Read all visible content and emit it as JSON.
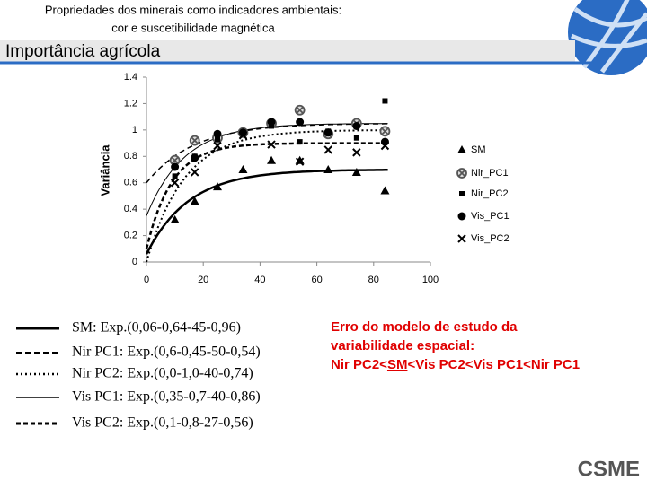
{
  "header": {
    "title_lines": [
      "Propriedades dos minerais como indicadores ambientais:",
      "cor e suscetibilidade magnética"
    ],
    "section": "Importância agrícola"
  },
  "chart_data": {
    "type": "scatter",
    "y_label": "Variância",
    "x": [
      10,
      17,
      25,
      34,
      44,
      54,
      64,
      74,
      84
    ],
    "xlim": [
      0,
      100
    ],
    "xticks": [
      0,
      20,
      40,
      60,
      80,
      100
    ],
    "ylim": [
      0,
      1.4
    ],
    "yticks": [
      0,
      0.2,
      0.4,
      0.6,
      0.8,
      1,
      1.2,
      1.4
    ],
    "series": [
      {
        "name": "SM",
        "color": "#000000",
        "marker": "triangle",
        "values": [
          0.32,
          0.46,
          0.57,
          0.7,
          0.77,
          0.77,
          0.7,
          0.68,
          0.54
        ]
      },
      {
        "name": "Nir_PC1",
        "color": "#555555",
        "marker": "circle-x",
        "values": [
          0.77,
          0.92,
          0.94,
          0.98,
          1.05,
          1.15,
          0.97,
          1.05,
          0.99
        ]
      },
      {
        "name": "Nir_PC2",
        "color": "#000000",
        "marker": "square",
        "values": [
          0.65,
          0.8,
          0.93,
          0.97,
          1.03,
          0.91,
          0.99,
          0.94,
          1.22
        ]
      },
      {
        "name": "Vis_PC1",
        "color": "#000000",
        "marker": "circle",
        "values": [
          0.72,
          0.79,
          0.97,
          0.98,
          1.06,
          1.06,
          0.98,
          1.03,
          0.91
        ]
      },
      {
        "name": "Vis_PC2",
        "color": "#000000",
        "marker": "x",
        "values": [
          0.6,
          0.68,
          0.88,
          0.96,
          0.89,
          0.76,
          0.85,
          0.83,
          0.88
        ]
      }
    ],
    "models": [
      {
        "label": "SM: Exp.(0,06-0,64-45-0,96)",
        "nugget": 0.06,
        "sill": 0.64,
        "range": 45,
        "style": "solid"
      },
      {
        "label": "Nir PC1: Exp.(0,6-0,45-50-0,54)",
        "nugget": 0.6,
        "sill": 0.45,
        "range": 50,
        "style": "dashed"
      },
      {
        "label": "Nir PC2: Exp.(0,0-1,0-40-0,74)",
        "nugget": 0.0,
        "sill": 1.0,
        "range": 40,
        "style": "dotted"
      },
      {
        "label": "Vis PC1: Exp.(0,35-0,7-40-0,86)",
        "nugget": 0.35,
        "sill": 0.7,
        "range": 40,
        "style": "thin"
      },
      {
        "label": "Vis PC2: Exp.(0,1-0,8-27-0,56)",
        "nugget": 0.1,
        "sill": 0.8,
        "range": 27,
        "style": "dash-dot"
      }
    ]
  },
  "note": {
    "lines": [
      "Erro do modelo de estudo da",
      "variabilidade espacial:"
    ],
    "ranking": [
      "Nir PC2<",
      "SM",
      "<Vis PC2<Vis PC1<Nir PC1"
    ]
  },
  "logo": "CSME"
}
